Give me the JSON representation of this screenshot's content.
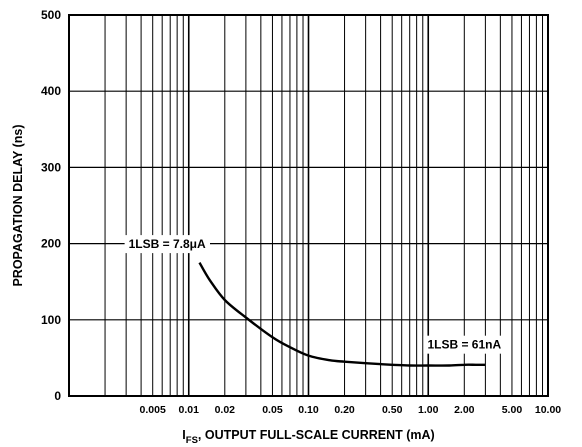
{
  "chart_data": {
    "type": "line",
    "title": "",
    "xlabel_prefix": "I",
    "xlabel_sub": "FS",
    "xlabel_suffix": ", OUTPUT FULL-SCALE CURRENT (mA)",
    "ylabel": "PROPAGATION DELAY (ns)",
    "xscale": "log",
    "xlim": [
      0.001,
      10
    ],
    "ylim": [
      0,
      500
    ],
    "grid": true,
    "x_tick_labels": [
      {
        "value": 0.005,
        "label": "0.005"
      },
      {
        "value": 0.01,
        "label": "0.01"
      },
      {
        "value": 0.02,
        "label": "0.02"
      },
      {
        "value": 0.05,
        "label": "0.05"
      },
      {
        "value": 0.1,
        "label": "0.10"
      },
      {
        "value": 0.2,
        "label": "0.20"
      },
      {
        "value": 0.5,
        "label": "0.50"
      },
      {
        "value": 1,
        "label": "1.00"
      },
      {
        "value": 2,
        "label": "2.00"
      },
      {
        "value": 5,
        "label": "5.00"
      },
      {
        "value": 10,
        "label": "10.00"
      }
    ],
    "y_ticks": [
      0,
      100,
      200,
      300,
      400,
      500
    ],
    "series": [
      {
        "x": [
          0.0123,
          0.015,
          0.02,
          0.03,
          0.05,
          0.07,
          0.1,
          0.15,
          0.2,
          0.3,
          0.5,
          0.7,
          1.0,
          1.5,
          2.0,
          2.5,
          3.0
        ],
        "y": [
          175,
          152,
          126,
          103,
          77,
          64,
          53,
          47,
          45,
          43,
          41,
          40,
          40,
          40,
          41,
          41,
          41
        ]
      }
    ],
    "annotations": [
      {
        "text_parts": [
          "1LSB = 7.8",
          "μ",
          "A"
        ],
        "x": 0.0066,
        "y": 200
      },
      {
        "text_parts": [
          "1LSB = 61nA"
        ],
        "x": 2.0,
        "y": 68
      }
    ]
  },
  "figure_id": "00268-C-013"
}
